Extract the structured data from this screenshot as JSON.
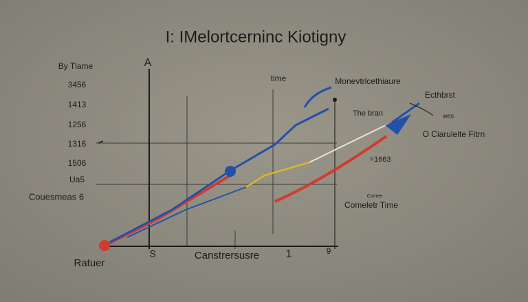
{
  "title": "I:  IMelortcerninc Kiotigny",
  "y_axis": {
    "label": "By Tlame",
    "arrow_label": "A",
    "labels": [
      "3456",
      "1413",
      "1256",
      "1316",
      "1506",
      "Ua5"
    ]
  },
  "left_label": "Couesmeas 6",
  "bottom_left_label": "Ratuer",
  "x_axis": {
    "labels": [
      "S",
      "Canstrersusre",
      "1",
      "9"
    ]
  },
  "annotations": {
    "time": "time",
    "top": "Monevtrlcethiaure",
    "right_top": "Ecthbrst",
    "mid": "The bran",
    "small": "wes",
    "right": "O Ciarulelte Fitrn",
    "value": "=1663",
    "lower_small": "Comee",
    "lower": "Comeletr Time"
  }
}
